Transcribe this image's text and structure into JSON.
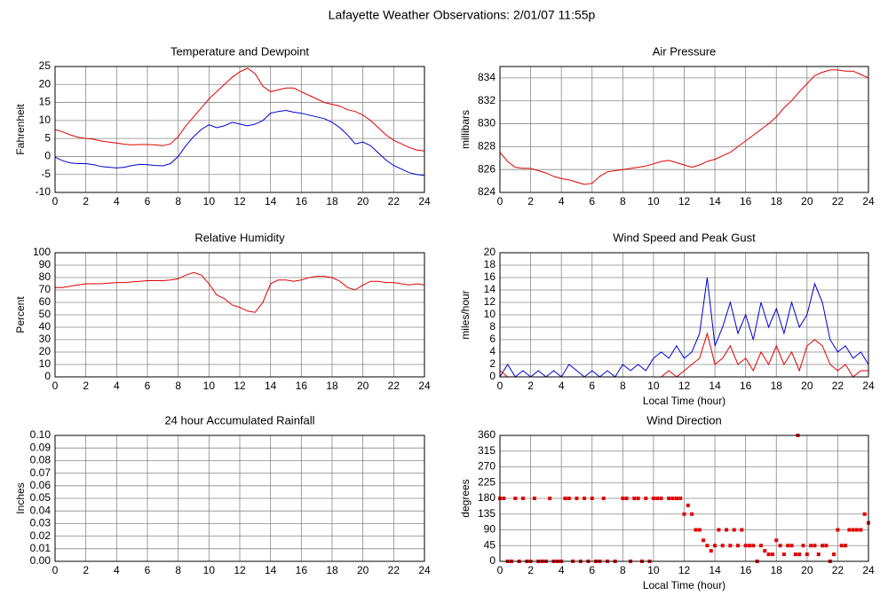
{
  "title": "Lafayette Weather Observations: 2/01/07 11:55p",
  "chart_data": [
    {
      "type": "line",
      "title": "Temperature and Dewpoint",
      "ylabel": "Fahrenheit",
      "x": [
        0,
        0.5,
        1,
        1.5,
        2,
        2.5,
        3,
        3.5,
        4,
        4.5,
        5,
        5.5,
        6,
        6.5,
        7,
        7.5,
        8,
        8.5,
        9,
        9.5,
        10,
        10.5,
        11,
        11.5,
        12,
        12.5,
        13,
        13.5,
        14,
        14.5,
        15,
        15.5,
        16,
        16.5,
        17,
        17.5,
        18,
        18.5,
        19,
        19.5,
        20,
        20.5,
        21,
        21.5,
        22,
        22.5,
        23,
        23.5,
        24
      ],
      "series": [
        {
          "color": "#e00000",
          "values": [
            7.5,
            6.8,
            6,
            5.3,
            5,
            4.8,
            4.3,
            4,
            3.7,
            3.4,
            3.2,
            3.3,
            3.3,
            3.2,
            3,
            3.5,
            5.5,
            8.5,
            11,
            13.5,
            16,
            18,
            20,
            22,
            23.5,
            24.5,
            23,
            19.5,
            18,
            18.5,
            19,
            19,
            18,
            17,
            16,
            15,
            14.5,
            14,
            13,
            12.5,
            11.5,
            10,
            8,
            6,
            4.5,
            3.5,
            2.5,
            1.8,
            1.5
          ]
        },
        {
          "color": "#0000d0",
          "values": [
            -0.2,
            -1.2,
            -1.8,
            -2,
            -2,
            -2.3,
            -2.8,
            -3,
            -3.2,
            -3,
            -2.5,
            -2.2,
            -2.3,
            -2.5,
            -2.6,
            -2,
            0,
            3,
            5.5,
            7.5,
            8.8,
            8,
            8.5,
            9.5,
            9,
            8.5,
            9,
            10,
            12,
            12.5,
            12.8,
            12.3,
            12,
            11.5,
            11,
            10.5,
            9.5,
            8,
            6,
            3.5,
            4,
            3,
            1,
            -1,
            -2.5,
            -3.5,
            -4.5,
            -5,
            -5.3
          ]
        }
      ],
      "xlim": [
        0,
        24
      ],
      "xticks": [
        0,
        2,
        4,
        6,
        8,
        10,
        12,
        14,
        16,
        18,
        20,
        22,
        24
      ],
      "ylim": [
        -10,
        25
      ],
      "yticks": [
        -10,
        -5,
        0,
        5,
        10,
        15,
        20,
        25
      ],
      "grid": true
    },
    {
      "type": "line",
      "title": "Air Pressure",
      "ylabel": "millibars",
      "x": [
        0,
        0.5,
        1,
        1.5,
        2,
        2.5,
        3,
        3.5,
        4,
        4.5,
        5,
        5.5,
        6,
        6.5,
        7,
        7.5,
        8,
        8.5,
        9,
        9.5,
        10,
        10.5,
        11,
        11.5,
        12,
        12.5,
        13,
        13.5,
        14,
        14.5,
        15,
        15.5,
        16,
        16.5,
        17,
        17.5,
        18,
        18.5,
        19,
        19.5,
        20,
        20.5,
        21,
        21.5,
        22,
        22.5,
        23,
        23.5,
        24
      ],
      "series": [
        {
          "color": "#e00000",
          "values": [
            827.5,
            826.7,
            826.2,
            826.1,
            826.1,
            825.9,
            825.7,
            825.4,
            825.2,
            825.1,
            824.9,
            824.7,
            824.8,
            825.4,
            825.8,
            825.9,
            826,
            826.1,
            826.2,
            826.3,
            826.5,
            826.7,
            826.8,
            826.6,
            826.4,
            826.2,
            826.4,
            826.7,
            826.9,
            827.2,
            827.5,
            828,
            828.5,
            829,
            829.5,
            830,
            830.6,
            831.4,
            832,
            832.8,
            833.5,
            834.2,
            834.5,
            834.7,
            834.7,
            834.6,
            834.6,
            834.3,
            834
          ]
        }
      ],
      "xlim": [
        0,
        24
      ],
      "xticks": [
        0,
        2,
        4,
        6,
        8,
        10,
        12,
        14,
        16,
        18,
        20,
        22,
        24
      ],
      "ylim": [
        824,
        835
      ],
      "yticks": [
        824,
        826,
        828,
        830,
        832,
        834
      ],
      "grid": true
    },
    {
      "type": "line",
      "title": "Relative Humidity",
      "ylabel": "Percent",
      "x": [
        0,
        0.5,
        1,
        1.5,
        2,
        2.5,
        3,
        3.5,
        4,
        4.5,
        5,
        5.5,
        6,
        6.5,
        7,
        7.5,
        8,
        8.5,
        9,
        9.5,
        10,
        10.5,
        11,
        11.5,
        12,
        12.5,
        13,
        13.5,
        14,
        14.5,
        15,
        15.5,
        16,
        16.5,
        17,
        17.5,
        18,
        18.5,
        19,
        19.5,
        20,
        20.5,
        21,
        21.5,
        22,
        22.5,
        23,
        23.5,
        24
      ],
      "series": [
        {
          "color": "#e00000",
          "values": [
            72,
            72,
            73,
            74,
            75,
            75,
            75,
            75.5,
            76,
            76,
            76.5,
            77,
            77.5,
            77.5,
            77.5,
            78,
            79,
            82,
            84,
            82,
            75,
            66,
            63,
            58,
            56,
            53,
            52,
            60,
            75,
            78,
            78,
            77,
            78,
            80,
            81,
            81,
            80,
            77,
            72,
            70,
            74,
            77,
            77,
            76,
            76,
            75,
            74,
            75,
            74
          ]
        }
      ],
      "xlim": [
        0,
        24
      ],
      "xticks": [
        0,
        2,
        4,
        6,
        8,
        10,
        12,
        14,
        16,
        18,
        20,
        22,
        24
      ],
      "ylim": [
        0,
        100
      ],
      "yticks": [
        0,
        10,
        20,
        30,
        40,
        50,
        60,
        70,
        80,
        90,
        100
      ],
      "grid": true
    },
    {
      "type": "line",
      "title": "Wind Speed and Peak Gust",
      "xlabel": "Local Time (hour)",
      "ylabel": "miles/hour",
      "x": [
        0,
        0.5,
        1,
        1.5,
        2,
        2.5,
        3,
        3.5,
        4,
        4.5,
        5,
        5.5,
        6,
        6.5,
        7,
        7.5,
        8,
        8.5,
        9,
        9.5,
        10,
        10.5,
        11,
        11.5,
        12,
        12.5,
        13,
        13.5,
        14,
        14.5,
        15,
        15.5,
        16,
        16.5,
        17,
        17.5,
        18,
        18.5,
        19,
        19.5,
        20,
        20.5,
        21,
        21.5,
        22,
        22.5,
        23,
        23.5,
        24
      ],
      "series": [
        {
          "color": "#0000d0",
          "values": [
            0,
            2,
            0,
            1,
            0,
            1,
            0,
            1,
            0,
            2,
            1,
            0,
            1,
            0,
            1,
            0,
            2,
            1,
            2,
            1,
            3,
            4,
            3,
            5,
            3,
            4,
            7,
            16,
            5,
            8,
            12,
            7,
            10,
            6,
            12,
            8,
            11,
            7,
            12,
            8,
            10,
            15,
            12,
            6,
            4,
            5,
            3,
            4,
            2
          ]
        },
        {
          "color": "#e00000",
          "values": [
            1,
            0,
            0,
            0,
            0,
            0,
            0,
            0,
            0,
            0,
            0,
            0,
            0,
            0,
            0,
            0,
            0,
            0,
            0,
            0,
            0,
            0,
            1,
            0,
            1,
            2,
            3,
            7,
            2,
            3,
            5,
            2,
            3,
            1,
            4,
            2,
            5,
            2,
            4,
            1,
            5,
            6,
            5,
            2,
            1,
            2,
            0,
            1,
            1
          ]
        }
      ],
      "xlim": [
        0,
        24
      ],
      "xticks": [
        0,
        2,
        4,
        6,
        8,
        10,
        12,
        14,
        16,
        18,
        20,
        22,
        24
      ],
      "ylim": [
        0,
        20
      ],
      "yticks": [
        0,
        2,
        4,
        6,
        8,
        10,
        12,
        14,
        16,
        18,
        20
      ],
      "grid": true
    },
    {
      "type": "line",
      "title": "24 hour Accumulated Rainfall",
      "ylabel": "Inches",
      "x": [
        0,
        24
      ],
      "series": [
        {
          "color": "#e00000",
          "values": [
            0,
            0
          ]
        }
      ],
      "xlim": [
        0,
        24
      ],
      "xticks": [
        0,
        2,
        4,
        6,
        8,
        10,
        12,
        14,
        16,
        18,
        20,
        22,
        24
      ],
      "ylim": [
        0,
        0.1
      ],
      "yticks": [
        {
          "value": 0,
          "label": "0.00"
        },
        {
          "value": 0.01,
          "label": "0.01"
        },
        {
          "value": 0.02,
          "label": "0.02"
        },
        {
          "value": 0.03,
          "label": "0.03"
        },
        {
          "value": 0.04,
          "label": "0.04"
        },
        {
          "value": 0.05,
          "label": "0.05"
        },
        {
          "value": 0.06,
          "label": "0.06"
        },
        {
          "value": 0.07,
          "label": "0.07"
        },
        {
          "value": 0.08,
          "label": "0.08"
        },
        {
          "value": 0.09,
          "label": "0.09"
        },
        {
          "value": 0.1,
          "label": "0.10"
        }
      ],
      "grid": true
    },
    {
      "type": "scatter",
      "title": "Wind Direction",
      "xlabel": "Local Time (hour)",
      "ylabel": "degrees",
      "x": [
        0,
        0.25,
        0.5,
        0.75,
        1,
        1.25,
        1.5,
        1.75,
        2,
        2.25,
        2.5,
        2.75,
        3,
        3.25,
        3.5,
        3.75,
        4,
        4.25,
        4.5,
        4.75,
        5,
        5.25,
        5.5,
        5.75,
        6,
        6.25,
        6.5,
        6.75,
        7,
        7.5,
        8,
        8.25,
        8.5,
        8.75,
        9,
        9.25,
        9.5,
        9.75,
        10,
        10.25,
        10.5,
        11,
        11.25,
        11.5,
        11.75,
        12,
        12.25,
        12.5,
        12.75,
        13,
        13.25,
        13.5,
        13.75,
        14,
        14.25,
        14.5,
        14.75,
        15,
        15.25,
        15.5,
        15.75,
        16,
        16.25,
        16.5,
        16.75,
        17,
        17.25,
        17.5,
        17.75,
        18,
        18.25,
        18.5,
        18.75,
        19,
        19.25,
        19.4,
        19.5,
        19.75,
        20,
        20.25,
        20.5,
        20.75,
        21,
        21.25,
        21.5,
        21.75,
        22,
        22.25,
        22.5,
        22.75,
        23,
        23.25,
        23.5,
        23.75,
        24
      ],
      "series": [
        {
          "color": "#e00000",
          "values": [
            180,
            180,
            0,
            0,
            180,
            0,
            180,
            0,
            0,
            180,
            0,
            0,
            0,
            180,
            0,
            0,
            0,
            180,
            180,
            0,
            180,
            0,
            180,
            0,
            180,
            0,
            0,
            180,
            0,
            0,
            180,
            180,
            0,
            180,
            180,
            0,
            180,
            0,
            180,
            180,
            180,
            180,
            180,
            180,
            180,
            135,
            160,
            135,
            90,
            90,
            60,
            45,
            30,
            45,
            90,
            45,
            90,
            45,
            90,
            45,
            90,
            45,
            45,
            45,
            0,
            45,
            30,
            20,
            20,
            60,
            45,
            20,
            45,
            45,
            20,
            360,
            20,
            45,
            20,
            45,
            45,
            20,
            45,
            45,
            0,
            20,
            90,
            45,
            45,
            90,
            90,
            90,
            90,
            135,
            110
          ]
        }
      ],
      "xlim": [
        0,
        24
      ],
      "xticks": [
        0,
        2,
        4,
        6,
        8,
        10,
        12,
        14,
        16,
        18,
        20,
        22,
        24
      ],
      "ylim": [
        0,
        360
      ],
      "yticks": [
        0,
        45,
        90,
        135,
        180,
        225,
        270,
        315,
        360
      ],
      "grid": true
    }
  ]
}
